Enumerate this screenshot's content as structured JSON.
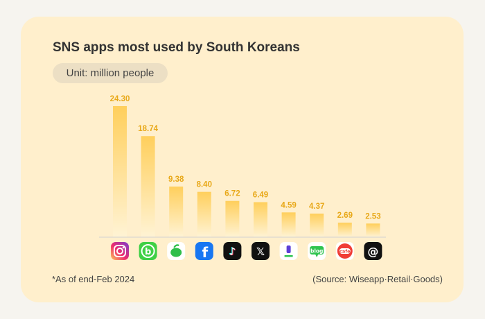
{
  "title": "SNS apps most used by South Koreans",
  "unit": "Unit: million people",
  "note": "*As of end-Feb 2024",
  "source": "(Source: Wiseapp·Retail·Goods)",
  "colors": {
    "bar_top": "#ffcf5c",
    "bar_bottom": "#fff3d4",
    "value_label": "#e8a818",
    "baseline": "#d2d2d2"
  },
  "chart_data": {
    "type": "bar",
    "categories": [
      "instagram-icon",
      "band-icon",
      "kakaostory-icon",
      "facebook-icon",
      "tiktok-icon",
      "x-icon",
      "naver-blog-icon-1",
      "naver-blog-icon-2",
      "daum-cafe-icon",
      "threads-icon"
    ],
    "values": [
      24.3,
      18.74,
      9.38,
      8.4,
      6.72,
      6.49,
      4.59,
      4.37,
      2.69,
      2.53
    ],
    "value_labels": [
      "24.30",
      "18.74",
      "9.38",
      "8.40",
      "6.72",
      "6.49",
      "4.59",
      "4.37",
      "2.69",
      "2.53"
    ],
    "ylim": [
      0,
      24.3
    ],
    "grid": false,
    "legend": "none"
  },
  "icons": [
    {
      "name": "instagram-icon"
    },
    {
      "name": "band-icon",
      "glyph": "b"
    },
    {
      "name": "kakaostory-icon"
    },
    {
      "name": "facebook-icon",
      "glyph": "f"
    },
    {
      "name": "tiktok-icon",
      "glyph": "♪"
    },
    {
      "name": "x-icon",
      "glyph": "𝕏"
    },
    {
      "name": "naver-blog-icon-1",
      "glyph": "❙"
    },
    {
      "name": "naver-blog-icon-2",
      "glyph": "blog"
    },
    {
      "name": "daum-cafe-icon",
      "glyph": "cafe"
    },
    {
      "name": "threads-icon",
      "glyph": "@"
    }
  ]
}
